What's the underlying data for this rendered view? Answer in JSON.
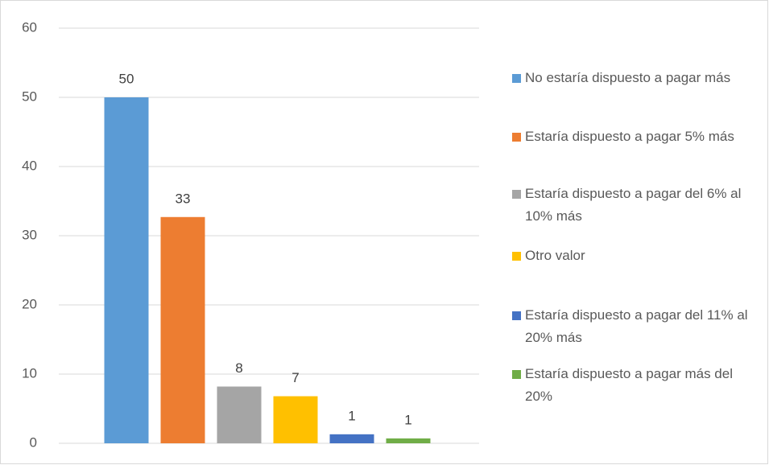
{
  "chart_data": {
    "type": "bar",
    "series": [
      {
        "name": "No estaría dispuesto a pagar más",
        "color": "#5b9bd5",
        "values": [
          50
        ],
        "value_labels": [
          "50"
        ]
      },
      {
        "name": "Estaría dispuesto a pagar 5% más",
        "color": "#ed7d31",
        "values": [
          32.7
        ],
        "value_labels": [
          "33"
        ]
      },
      {
        "name": "Estaría dispuesto a pagar del 6% al 10% más",
        "color": "#a5a5a5",
        "values": [
          8.2
        ],
        "value_labels": [
          "8"
        ]
      },
      {
        "name": "Otro valor",
        "color": "#ffc000",
        "values": [
          6.8
        ],
        "value_labels": [
          "7"
        ]
      },
      {
        "name": "Estaría dispuesto a pagar del 11% al 20% más",
        "color": "#4472c4",
        "values": [
          1.3
        ],
        "value_labels": [
          "1"
        ]
      },
      {
        "name": "Estaría dispuesto a pagar más del 20%",
        "color": "#70ad47",
        "values": [
          0.7
        ],
        "value_labels": [
          "1"
        ]
      }
    ],
    "ylim": [
      0,
      60
    ],
    "yticks": [
      0,
      10,
      20,
      30,
      40,
      50,
      60
    ],
    "grid": true,
    "legend": "right"
  }
}
